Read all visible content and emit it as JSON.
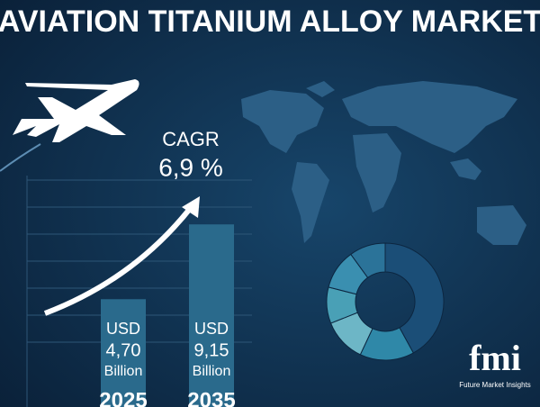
{
  "chart_data": [
    {
      "type": "bar",
      "title": "AVIATION TITANIUM ALLOY MARKET",
      "annotations": [
        "CAGR",
        "6,9 %"
      ],
      "categories": [
        "2025",
        "2035"
      ],
      "values": [
        4.7,
        9.15
      ],
      "value_labels": [
        "4,70",
        "9,15"
      ],
      "value_prefix": "USD",
      "value_suffix": "Billion",
      "color": "#2a6a8c",
      "ylim": [
        0,
        12
      ]
    },
    {
      "type": "pie",
      "values": [
        42,
        15,
        12,
        10,
        11,
        10
      ],
      "colors": [
        "#1b4e77",
        "#2f88a8",
        "#6db6c6",
        "#49a0b6",
        "#3a8fb0",
        "#2b7399"
      ]
    }
  ],
  "logo": {
    "mark": "fmi",
    "name": "Future Market Insights"
  }
}
